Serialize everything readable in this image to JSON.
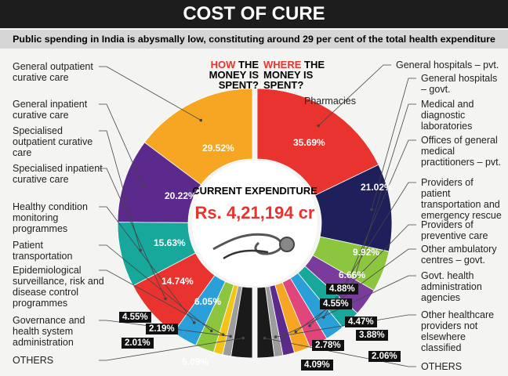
{
  "header": {
    "title": "COST OF CURE",
    "subtitle": "Public spending in India is abysmally low, constituting around 29 per cent of the total health expenditure"
  },
  "center": {
    "label": "CURRENT EXPENDITURE",
    "value": "Rs. 4,21,194 cr"
  },
  "chart_data": [
    {
      "type": "half-donut",
      "side": "left",
      "heading_highlight": "HOW",
      "heading_rest": "THE MONEY IS SPENT?",
      "categories": [
        "General outpatient curative care",
        "General inpatient curative care",
        "Specialised outpatient curative care",
        "Specialised inpatient curative care",
        "Healthy condition monitoring programmes",
        "Patient transportation",
        "Epidemiological surveillance, risk and disease control programmes",
        "Governance and health system administration",
        "OTHERS"
      ],
      "values": [
        29.52,
        20.22,
        15.63,
        14.74,
        6.05,
        4.55,
        2.19,
        2.01,
        5.09
      ],
      "value_labels": [
        "29.52%",
        "20.22%",
        "15.63%",
        "14.74%",
        "6.05%",
        "4.55%",
        "2.19%",
        "2.01%",
        "5.09%"
      ],
      "colors": [
        "#f6a623",
        "#5b2a8c",
        "#17a79b",
        "#e8332e",
        "#2a9fd8",
        "#8cc63f",
        "#f3c318",
        "#9c9c9c",
        "#1a1a1a"
      ]
    },
    {
      "type": "half-donut",
      "side": "right",
      "heading_highlight": "WHERE",
      "heading_rest": "THE MONEY IS SPENT?",
      "categories": [
        "General hospitals – pvt.",
        "General hospitals – govt.",
        "Pharmacies",
        "Medical and diagnostic laboratories",
        "Offices of general medical practitioners – pvt.",
        "Providers of patient transportation and emergency rescue",
        "Providers of preventive care",
        "Other ambulatory centres – govt.",
        "Govt. health administration agencies",
        "Other healthcare providers not elsewhere classified",
        "OTHERS"
      ],
      "values": [
        35.69,
        21.02,
        9.92,
        6.66,
        4.88,
        4.55,
        4.47,
        3.88,
        2.78,
        2.06,
        4.09
      ],
      "value_labels": [
        "35.69%",
        "21.02%",
        "9.92%",
        "6.66%",
        "4.88%",
        "4.55%",
        "4.47%",
        "3.88%",
        "2.78%",
        "2.06%",
        "4.09%"
      ],
      "colors": [
        "#e8332e",
        "#1f1f5c",
        "#8cc63f",
        "#7a3c9c",
        "#17a79b",
        "#2a9fd8",
        "#e0457b",
        "#f6a623",
        "#5b2a8c",
        "#9c9c9c",
        "#1a1a1a"
      ]
    }
  ]
}
